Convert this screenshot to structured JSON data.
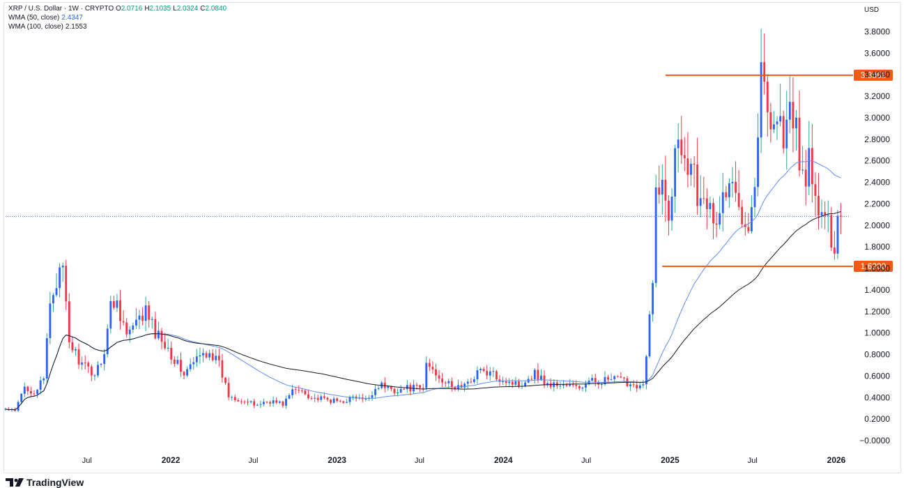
{
  "header": {
    "symbol": "XRP / U.S. Dollar · 1W · CRYPTO",
    "ohlc": [
      {
        "key": "O",
        "value": "2.0716"
      },
      {
        "key": "H",
        "value": "2.1035"
      },
      {
        "key": "L",
        "value": "2.0324"
      },
      {
        "key": "C",
        "value": "2.0840"
      }
    ],
    "wma50_label": "WMA (50, close)",
    "wma50_value": "2.4347",
    "wma100_label": "WMA (100, close)",
    "wma100_value": "2.1553",
    "currency": "USD"
  },
  "brand": "TradingView",
  "colors": {
    "up": "#2962ff",
    "down": "#f23645",
    "wma50": "#5b8def",
    "wma100": "#131722",
    "level": "#f05a14"
  },
  "chart_data": {
    "type": "candlestick",
    "title": "",
    "ylim": [
      -0.1,
      3.95
    ],
    "y_ticks": [
      "3.8000",
      "3.6000",
      "3.4000",
      "3.2000",
      "3.0000",
      "2.8000",
      "2.6000",
      "2.4000",
      "2.2000",
      "2.0000",
      "1.8000",
      "1.6000",
      "1.4000",
      "1.2000",
      "1.0000",
      "0.8000",
      "0.6000",
      "0.4000",
      "0.2000",
      "−0.0000"
    ],
    "x_labels": [
      {
        "text": "Jul",
        "date": "2021-07-01",
        "bold": false
      },
      {
        "text": "2022",
        "date": "2022-01-01",
        "bold": true
      },
      {
        "text": "Jul",
        "date": "2022-07-01",
        "bold": false
      },
      {
        "text": "2023",
        "date": "2023-01-01",
        "bold": true
      },
      {
        "text": "Jul",
        "date": "2023-07-01",
        "bold": false
      },
      {
        "text": "2024",
        "date": "2024-01-01",
        "bold": true
      },
      {
        "text": "Jul",
        "date": "2024-07-01",
        "bold": false
      },
      {
        "text": "2025",
        "date": "2025-01-01",
        "bold": true
      },
      {
        "text": "Jul",
        "date": "2025-07-01",
        "bold": false
      },
      {
        "text": "2026",
        "date": "2026-01-01",
        "bold": true
      }
    ],
    "price_anchors": [
      [
        "2021-01-03",
        0.29
      ],
      [
        "2021-01-24",
        0.27
      ],
      [
        "2021-02-14",
        0.5
      ],
      [
        "2021-03-07",
        0.45
      ],
      [
        "2021-03-28",
        0.56
      ],
      [
        "2021-04-11",
        1.3
      ],
      [
        "2021-04-25",
        1.5
      ],
      [
        "2021-05-09",
        1.55
      ],
      [
        "2021-05-23",
        0.92
      ],
      [
        "2021-06-20",
        0.7
      ],
      [
        "2021-07-18",
        0.62
      ],
      [
        "2021-08-08",
        0.83
      ],
      [
        "2021-08-22",
        1.25
      ],
      [
        "2021-09-05",
        1.3
      ],
      [
        "2021-09-26",
        0.98
      ],
      [
        "2021-10-17",
        1.07
      ],
      [
        "2021-11-07",
        1.2
      ],
      [
        "2021-11-28",
        1.0
      ],
      [
        "2021-12-19",
        0.92
      ],
      [
        "2022-01-09",
        0.75
      ],
      [
        "2022-01-30",
        0.62
      ],
      [
        "2022-02-20",
        0.72
      ],
      [
        "2022-03-06",
        0.78
      ],
      [
        "2022-03-27",
        0.84
      ],
      [
        "2022-04-17",
        0.7
      ],
      [
        "2022-05-08",
        0.42
      ],
      [
        "2022-06-05",
        0.38
      ],
      [
        "2022-07-03",
        0.33
      ],
      [
        "2022-08-07",
        0.37
      ],
      [
        "2022-09-04",
        0.34
      ],
      [
        "2022-09-25",
        0.46
      ],
      [
        "2022-10-16",
        0.47
      ],
      [
        "2022-11-06",
        0.4
      ],
      [
        "2022-12-04",
        0.38
      ],
      [
        "2023-01-08",
        0.36
      ],
      [
        "2023-02-05",
        0.4
      ],
      [
        "2023-03-05",
        0.37
      ],
      [
        "2023-04-02",
        0.52
      ],
      [
        "2023-05-07",
        0.47
      ],
      [
        "2023-06-11",
        0.49
      ],
      [
        "2023-07-09",
        0.48
      ],
      [
        "2023-07-16",
        0.72
      ],
      [
        "2023-08-13",
        0.6
      ],
      [
        "2023-09-10",
        0.49
      ],
      [
        "2023-10-15",
        0.52
      ],
      [
        "2023-11-05",
        0.65
      ],
      [
        "2023-12-03",
        0.62
      ],
      [
        "2024-01-07",
        0.56
      ],
      [
        "2024-02-04",
        0.52
      ],
      [
        "2024-03-10",
        0.63
      ],
      [
        "2024-04-07",
        0.52
      ],
      [
        "2024-05-12",
        0.52
      ],
      [
        "2024-06-16",
        0.49
      ],
      [
        "2024-07-14",
        0.55
      ],
      [
        "2024-08-11",
        0.56
      ],
      [
        "2024-09-08",
        0.57
      ],
      [
        "2024-10-06",
        0.53
      ],
      [
        "2024-11-03",
        0.51
      ],
      [
        "2024-11-10",
        0.77
      ],
      [
        "2024-11-17",
        1.12
      ],
      [
        "2024-11-24",
        1.43
      ],
      [
        "2024-12-01",
        2.3
      ],
      [
        "2024-12-08",
        2.45
      ],
      [
        "2024-12-15",
        2.32
      ],
      [
        "2024-12-29",
        2.1
      ],
      [
        "2025-01-05",
        2.38
      ],
      [
        "2025-01-12",
        2.85
      ],
      [
        "2025-01-19",
        3.0
      ],
      [
        "2025-02-02",
        2.55
      ],
      [
        "2025-02-16",
        2.7
      ],
      [
        "2025-03-02",
        2.3
      ],
      [
        "2025-03-16",
        2.42
      ],
      [
        "2025-04-06",
        1.95
      ],
      [
        "2025-04-27",
        2.25
      ],
      [
        "2025-05-11",
        2.35
      ],
      [
        "2025-06-01",
        2.2
      ],
      [
        "2025-06-22",
        2.08
      ],
      [
        "2025-07-06",
        2.35
      ],
      [
        "2025-07-13",
        2.95
      ],
      [
        "2025-07-20",
        3.4
      ],
      [
        "2025-08-03",
        3.1
      ],
      [
        "2025-08-24",
        3.0
      ],
      [
        "2025-09-07",
        2.85
      ],
      [
        "2025-09-21",
        3.0
      ],
      [
        "2025-10-05",
        2.85
      ],
      [
        "2025-10-19",
        2.45
      ],
      [
        "2025-11-02",
        2.55
      ],
      [
        "2025-11-16",
        2.2
      ],
      [
        "2025-11-30",
        2.1
      ],
      [
        "2025-12-14",
        1.97
      ],
      [
        "2025-12-28",
        1.85
      ],
      [
        "2026-01-04",
        2.08
      ],
      [
        "2026-01-11",
        2.08
      ]
    ],
    "last_close": 2.084,
    "levels": [
      {
        "value": 3.3962,
        "label": "3.3962",
        "from": "2024-12-22"
      },
      {
        "value": 1.62,
        "label": "1.6200",
        "from": "2024-12-15"
      }
    ]
  }
}
